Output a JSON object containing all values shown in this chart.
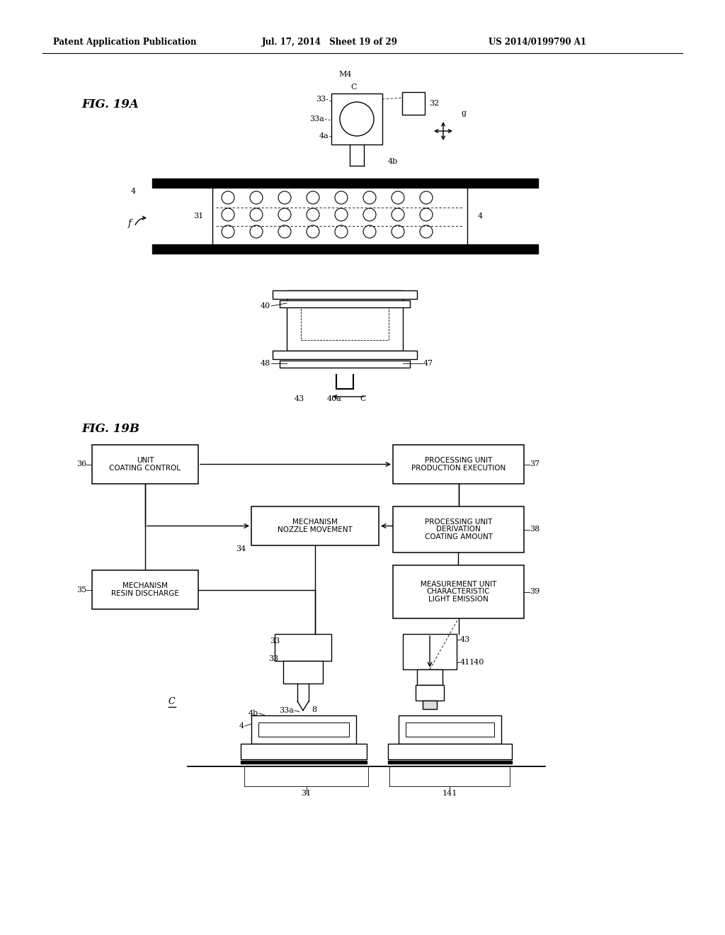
{
  "bg_color": "#ffffff",
  "header_left": "Patent Application Publication",
  "header_mid": "Jul. 17, 2014   Sheet 19 of 29",
  "header_right": "US 2014/0199790 A1",
  "fig19a_label": "FIG. 19A",
  "fig19b_label": "FIG. 19B",
  "line_color": "#000000"
}
